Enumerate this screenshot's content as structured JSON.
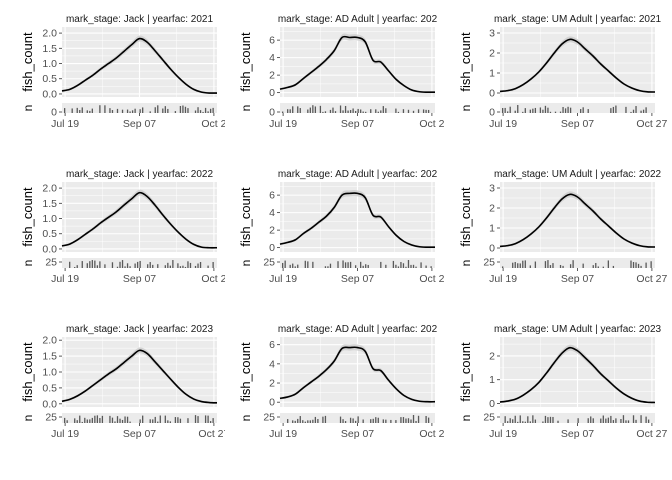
{
  "chart_data": {
    "type": "line",
    "layout": "3x3 facet grid",
    "ylabel": "fish_count",
    "histogram_ylabel": "n",
    "colors": {
      "line": "#000000",
      "band": "#cfcfcf",
      "panel_bg": "#ebebeb",
      "grid": "#ffffff",
      "hist": "#595959"
    },
    "panels": [
      {
        "strip": "mark_stage: Jack | yearfac: 2021",
        "x_ticks": [
          "Jul 19",
          "Sep 07",
          "Oct 2"
        ],
        "y_ticks": [
          "0.0",
          "0.5",
          "1.0",
          "1.5",
          "2.0"
        ],
        "ylim": [
          -0.1,
          2.2
        ],
        "n_ticks": [
          "0"
        ],
        "series": [
          {
            "x": [
              0,
              5,
              10,
              15,
              20,
              25,
              30,
              35,
              40,
              45,
              50,
              55,
              60,
              65,
              70,
              75,
              80,
              85,
              90,
              95,
              100
            ],
            "y": [
              0.1,
              0.15,
              0.28,
              0.45,
              0.62,
              0.82,
              1.0,
              1.18,
              1.4,
              1.62,
              1.82,
              1.7,
              1.42,
              1.12,
              0.82,
              0.55,
              0.32,
              0.15,
              0.06,
              0.03,
              0.03
            ]
          }
        ]
      },
      {
        "strip": "mark_stage: AD Adult | yearfac: 202",
        "x_ticks": [
          "Jul 19",
          "Sep 07",
          "Oct 2"
        ],
        "y_ticks": [
          "0",
          "2",
          "4",
          "6"
        ],
        "ylim": [
          -0.5,
          7.5
        ],
        "n_ticks": [
          "0"
        ],
        "series": [
          {
            "x": [
              0,
              5,
              10,
              15,
              20,
              25,
              30,
              35,
              40,
              45,
              50,
              55,
              60,
              65,
              70,
              75,
              80,
              85,
              90,
              95,
              100
            ],
            "y": [
              0.4,
              0.6,
              0.9,
              1.6,
              2.3,
              3.0,
              3.8,
              4.8,
              6.3,
              6.3,
              6.3,
              5.8,
              3.7,
              3.5,
              2.5,
              1.5,
              0.8,
              0.3,
              0.1,
              0.05,
              0.05
            ]
          }
        ]
      },
      {
        "strip": "mark_stage: UM Adult | yearfac: 2021",
        "x_ticks": [
          "Jul 19",
          "Sep 07",
          "Oct 27"
        ],
        "y_ticks": [
          "0",
          "1",
          "2",
          "3"
        ],
        "ylim": [
          -0.2,
          3.3
        ],
        "n_ticks": [
          "0"
        ],
        "series": [
          {
            "x": [
              0,
              5,
              10,
              15,
              20,
              25,
              30,
              35,
              40,
              45,
              50,
              55,
              60,
              65,
              70,
              75,
              80,
              85,
              90,
              95,
              100
            ],
            "y": [
              0.08,
              0.12,
              0.22,
              0.42,
              0.7,
              1.05,
              1.5,
              2.0,
              2.45,
              2.68,
              2.55,
              2.2,
              1.85,
              1.45,
              1.1,
              0.75,
              0.45,
              0.25,
              0.12,
              0.06,
              0.05
            ]
          }
        ]
      },
      {
        "strip": "mark_stage: Jack | yearfac: 2022",
        "x_ticks": [
          "Jul 19",
          "Sep 07",
          "Oct 2"
        ],
        "y_ticks": [
          "0.0",
          "0.5",
          "1.0",
          "1.5",
          "2.0"
        ],
        "ylim": [
          -0.1,
          2.2
        ],
        "n_ticks": [
          "25"
        ],
        "series": [
          {
            "x": [
              0,
              5,
              10,
              15,
              20,
              25,
              30,
              35,
              40,
              45,
              50,
              55,
              60,
              65,
              70,
              75,
              80,
              85,
              90,
              95,
              100
            ],
            "y": [
              0.1,
              0.16,
              0.3,
              0.48,
              0.66,
              0.86,
              1.04,
              1.22,
              1.44,
              1.65,
              1.85,
              1.72,
              1.44,
              1.12,
              0.82,
              0.55,
              0.32,
              0.15,
              0.06,
              0.04,
              0.04
            ]
          }
        ]
      },
      {
        "strip": "mark_stage: AD Adult | yearfac: 202",
        "x_ticks": [
          "Jul 19",
          "Sep 07",
          "Oct 2"
        ],
        "y_ticks": [
          "0",
          "2",
          "4",
          "6"
        ],
        "ylim": [
          -0.5,
          7.5
        ],
        "n_ticks": [
          "25"
        ],
        "series": [
          {
            "x": [
              0,
              5,
              10,
              15,
              20,
              25,
              30,
              35,
              40,
              45,
              50,
              55,
              60,
              65,
              70,
              75,
              80,
              85,
              90,
              95,
              100
            ],
            "y": [
              0.4,
              0.6,
              0.9,
              1.6,
              2.2,
              2.9,
              3.6,
              4.6,
              6.0,
              6.2,
              6.2,
              5.7,
              3.7,
              3.5,
              2.4,
              1.4,
              0.7,
              0.3,
              0.1,
              0.05,
              0.05
            ]
          }
        ]
      },
      {
        "strip": "mark_stage: UM Adult | yearfac: 2022",
        "x_ticks": [
          "Jul 19",
          "Sep 07",
          "Oct 27"
        ],
        "y_ticks": [
          "0",
          "1",
          "2",
          "3"
        ],
        "ylim": [
          -0.2,
          3.3
        ],
        "n_ticks": [
          "25"
        ],
        "series": [
          {
            "x": [
              0,
              5,
              10,
              15,
              20,
              25,
              30,
              35,
              40,
              45,
              50,
              55,
              60,
              65,
              70,
              75,
              80,
              85,
              90,
              95,
              100
            ],
            "y": [
              0.08,
              0.12,
              0.22,
              0.42,
              0.7,
              1.05,
              1.5,
              2.0,
              2.45,
              2.68,
              2.55,
              2.2,
              1.85,
              1.45,
              1.1,
              0.75,
              0.45,
              0.25,
              0.12,
              0.06,
              0.05
            ]
          }
        ]
      },
      {
        "strip": "mark_stage: Jack | yearfac: 2023",
        "x_ticks": [
          "Jul 19",
          "Sep 07",
          "Oct 27"
        ],
        "y_ticks": [
          "0.0",
          "0.5",
          "1.0",
          "1.5",
          "2.0"
        ],
        "ylim": [
          -0.1,
          2.1
        ],
        "n_ticks": [
          "25"
        ],
        "series": [
          {
            "x": [
              0,
              5,
              10,
              15,
              20,
              25,
              30,
              35,
              40,
              45,
              50,
              55,
              60,
              65,
              70,
              75,
              80,
              85,
              90,
              95,
              100
            ],
            "y": [
              0.08,
              0.14,
              0.25,
              0.4,
              0.58,
              0.76,
              0.94,
              1.1,
              1.3,
              1.5,
              1.68,
              1.58,
              1.32,
              1.05,
              0.78,
              0.52,
              0.3,
              0.15,
              0.07,
              0.04,
              0.03
            ]
          }
        ]
      },
      {
        "strip": "mark_stage: AD Adult | yearfac: 202",
        "x_ticks": [
          "Jul 19",
          "Sep 07",
          "Oct 2"
        ],
        "y_ticks": [
          "0",
          "2",
          "4",
          "6"
        ],
        "ylim": [
          -0.5,
          6.8
        ],
        "n_ticks": [
          "25"
        ],
        "series": [
          {
            "x": [
              0,
              5,
              10,
              15,
              20,
              25,
              30,
              35,
              40,
              45,
              50,
              55,
              60,
              65,
              70,
              75,
              80,
              85,
              90,
              95,
              100
            ],
            "y": [
              0.4,
              0.55,
              0.85,
              1.5,
              2.1,
              2.7,
              3.4,
              4.3,
              5.6,
              5.7,
              5.7,
              5.3,
              3.5,
              3.3,
              2.3,
              1.4,
              0.7,
              0.3,
              0.1,
              0.05,
              0.05
            ]
          }
        ]
      },
      {
        "strip": "mark_stage: UM Adult | yearfac: 2023",
        "x_ticks": [
          "Jul 19",
          "Sep 07",
          "Oct 27"
        ],
        "y_ticks": [
          "0",
          "1",
          "2"
        ],
        "ylim": [
          -0.15,
          2.8
        ],
        "n_ticks": [
          "25"
        ],
        "series": [
          {
            "x": [
              0,
              5,
              10,
              15,
              20,
              25,
              30,
              35,
              40,
              45,
              50,
              55,
              60,
              65,
              70,
              75,
              80,
              85,
              90,
              95,
              100
            ],
            "y": [
              0.06,
              0.1,
              0.18,
              0.35,
              0.58,
              0.88,
              1.28,
              1.72,
              2.12,
              2.35,
              2.22,
              1.92,
              1.6,
              1.25,
              0.95,
              0.65,
              0.4,
              0.22,
              0.1,
              0.05,
              0.04
            ]
          }
        ]
      }
    ]
  }
}
